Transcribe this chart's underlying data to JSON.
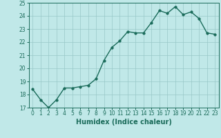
{
  "x": [
    0,
    1,
    2,
    3,
    4,
    5,
    6,
    7,
    8,
    9,
    10,
    11,
    12,
    13,
    14,
    15,
    16,
    17,
    18,
    19,
    20,
    21,
    22,
    23
  ],
  "y": [
    18.4,
    17.6,
    17.0,
    17.6,
    18.5,
    18.5,
    18.6,
    18.7,
    19.2,
    20.6,
    21.6,
    22.1,
    22.8,
    22.7,
    22.7,
    23.5,
    24.4,
    24.2,
    24.7,
    24.1,
    24.3,
    23.8,
    22.7,
    22.6
  ],
  "line_color": "#1a6b5a",
  "marker_color": "#1a6b5a",
  "bg_color": "#c0e8e8",
  "grid_color": "#98c8c8",
  "xlabel": "Humidex (Indice chaleur)",
  "ylim": [
    17,
    25
  ],
  "xlim_min": -0.5,
  "xlim_max": 23.5,
  "yticks": [
    17,
    18,
    19,
    20,
    21,
    22,
    23,
    24,
    25
  ],
  "xticks": [
    0,
    1,
    2,
    3,
    4,
    5,
    6,
    7,
    8,
    9,
    10,
    11,
    12,
    13,
    14,
    15,
    16,
    17,
    18,
    19,
    20,
    21,
    22,
    23
  ],
  "tick_fontsize": 5.5,
  "xlabel_fontsize": 7,
  "marker_size": 2.5,
  "line_width": 1.0
}
